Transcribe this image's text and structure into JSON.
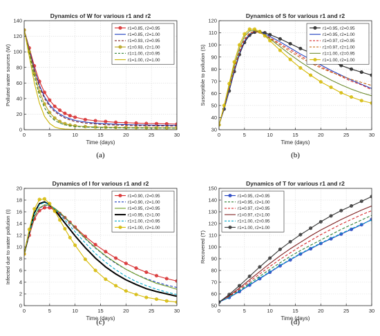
{
  "figure": {
    "captions": [
      "(a)",
      "(b)",
      "(c)",
      "(d)"
    ]
  },
  "chart_data": [
    {
      "type": "line",
      "title": "Dynamics of W for various r1 and r2",
      "xlabel": "Time (days)",
      "ylabel": "Polluted water sources (W)",
      "xlim": [
        0,
        30
      ],
      "ylim": [
        0,
        140
      ],
      "xticks": [
        0,
        5,
        10,
        15,
        20,
        25,
        30
      ],
      "yticks": [
        0,
        20,
        40,
        60,
        80,
        100,
        120,
        140
      ],
      "grid": true,
      "legend_position": "top-right",
      "x": [
        0,
        1,
        2,
        3,
        4,
        5,
        6,
        7,
        8,
        9,
        10,
        12,
        14,
        16,
        18,
        20,
        22,
        24,
        26,
        28,
        30
      ],
      "series": [
        {
          "name": "r1=0.85, r2=0.95",
          "color": "#d62728",
          "style": "marker",
          "values": [
            128,
            105,
            82,
            62,
            48,
            38,
            30,
            25,
            21,
            18,
            16,
            13,
            11.5,
            10.5,
            9.5,
            9,
            8.5,
            8,
            7.8,
            7.5,
            7.2
          ]
        },
        {
          "name": "r1=0.85, r2=1.00",
          "color": "#1f3fbf",
          "style": "solid",
          "values": [
            128,
            103,
            78,
            57,
            42,
            32,
            25,
            20,
            16.5,
            14,
            12,
            9.8,
            8.5,
            7.7,
            7,
            6.6,
            6.2,
            6,
            5.8,
            5.6,
            5.5
          ]
        },
        {
          "name": "r1=0.93, r2=0.95",
          "color": "#7f1f1f",
          "style": "dashed",
          "values": [
            128,
            102,
            76,
            55,
            40,
            30,
            23,
            18.5,
            15,
            12.5,
            10.5,
            8.5,
            7.3,
            6.5,
            6,
            5.6,
            5.3,
            5.1,
            5,
            4.9,
            4.8
          ]
        },
        {
          "name": "r1=0.93, r2=1.00",
          "color": "#b5a11a",
          "style": "marker",
          "values": [
            128,
            100,
            72,
            49,
            33,
            22,
            15,
            10.5,
            7.8,
            6,
            5,
            4,
            3.5,
            3.2,
            3,
            2.8,
            2.7,
            2.6,
            2.5,
            2.5,
            2.4
          ]
        },
        {
          "name": "r1=1.00, r2=0.95",
          "color": "#2e7d32",
          "style": "dashed",
          "values": [
            128,
            98,
            68,
            44,
            28,
            18,
            12,
            8.5,
            6.3,
            5,
            4.2,
            3.4,
            3,
            2.7,
            2.5,
            2.4,
            2.3,
            2.2,
            2.1,
            2.1,
            2
          ]
        },
        {
          "name": "r1=1.00, r2=1.00",
          "color": "#c9b300",
          "style": "solid",
          "values": [
            128,
            94,
            60,
            34,
            17,
            8,
            3.5,
            1.5,
            0.8,
            0.5,
            0.3,
            0.2,
            0.2,
            0.1,
            0.1,
            0.1,
            0.1,
            0.1,
            0.1,
            0.1,
            0.1
          ]
        }
      ]
    },
    {
      "type": "line",
      "title": "Dynamics of S for various r1 and r2",
      "xlabel": "Time (days)",
      "ylabel": "Susceptible to pollution (S)",
      "xlim": [
        0,
        30
      ],
      "ylim": [
        30,
        120
      ],
      "xticks": [
        0,
        5,
        10,
        15,
        20,
        25,
        30
      ],
      "yticks": [
        30,
        40,
        50,
        60,
        70,
        80,
        90,
        100,
        110,
        120
      ],
      "grid": true,
      "legend_position": "top-right",
      "x": [
        0,
        1,
        2,
        3,
        4,
        5,
        6,
        7,
        8,
        9,
        10,
        12,
        14,
        16,
        18,
        20,
        22,
        24,
        26,
        28,
        30
      ],
      "series": [
        {
          "name": "r1=0.95, r2=0.95",
          "color": "#222222",
          "style": "marker",
          "values": [
            34,
            47,
            62,
            78,
            92,
            102,
            108,
            110.5,
            110.8,
            110,
            108.5,
            105,
            101,
            97,
            93.5,
            90,
            86.5,
            83,
            80,
            77.5,
            75
          ]
        },
        {
          "name": "r1=0.95, r2=1.00",
          "color": "#1f3fbf",
          "style": "solid",
          "values": [
            34,
            47.5,
            63,
            79,
            93,
            103,
            109,
            111,
            110.5,
            109,
            107,
            102.5,
            97.5,
            92.5,
            88,
            83.5,
            79,
            75,
            71,
            67.5,
            64
          ]
        },
        {
          "name": "r1=0.97, r2=0.95",
          "color": "#d62728",
          "style": "dashed",
          "values": [
            34,
            48,
            64,
            80,
            94,
            104,
            109.5,
            111,
            110.3,
            108.5,
            106,
            101,
            96,
            91,
            86,
            82,
            78,
            74,
            70,
            67,
            63
          ]
        },
        {
          "name": "r1=0.97, r2=1.00",
          "color": "#c56a17",
          "style": "dashed",
          "values": [
            34,
            48.5,
            65,
            81,
            95,
            105,
            110,
            111.2,
            110,
            108,
            105.5,
            100,
            94.5,
            89.5,
            85,
            81,
            77.5,
            74.5,
            71.5,
            69,
            66.5
          ]
        },
        {
          "name": "r1=1.00, r2=0.95",
          "color": "#6d8b2f",
          "style": "solid",
          "values": [
            34,
            49,
            66,
            83,
            97,
            107,
            111.5,
            112,
            110.5,
            108,
            105,
            98.5,
            92,
            86,
            80.5,
            75.5,
            71,
            67,
            63.5,
            60.5,
            58
          ]
        },
        {
          "name": "r1=1.00, r2=1.00",
          "color": "#d4b800",
          "style": "marker",
          "values": [
            34,
            50,
            68,
            86,
            100,
            109,
            113,
            113,
            111,
            107.5,
            103.5,
            95.5,
            88,
            81,
            75,
            69.5,
            65,
            60.5,
            57,
            54,
            52
          ]
        }
      ]
    },
    {
      "type": "line",
      "title": "Dynamics of I for various r1 and r2",
      "xlabel": "Time (days)",
      "ylabel": "Infected due to water pollution (I)",
      "xlim": [
        0,
        30
      ],
      "ylim": [
        0,
        20
      ],
      "xticks": [
        0,
        5,
        10,
        15,
        20,
        25,
        30
      ],
      "yticks": [
        0,
        2,
        4,
        6,
        8,
        10,
        12,
        14,
        16,
        18,
        20
      ],
      "grid": true,
      "legend_position": "top-right",
      "x": [
        0,
        1,
        2,
        3,
        4,
        5,
        6,
        7,
        8,
        9,
        10,
        12,
        14,
        16,
        18,
        20,
        22,
        24,
        26,
        28,
        30
      ],
      "series": [
        {
          "name": "r1=0.90, r2=0.95",
          "color": "#d62728",
          "style": "marker",
          "values": [
            8.8,
            12,
            14.8,
            16.2,
            16.7,
            16.7,
            16.3,
            15.7,
            15,
            14.2,
            13.4,
            11.8,
            10.4,
            9.2,
            8.1,
            7.2,
            6.4,
            5.7,
            5.1,
            4.6,
            4.2
          ]
        },
        {
          "name": "r1=0.90, r2=1.00",
          "color": "#1f3fbf",
          "style": "dashed",
          "values": [
            8.8,
            12.2,
            15.1,
            16.6,
            17.1,
            17,
            16.5,
            15.8,
            15,
            14.1,
            13.2,
            11.4,
            9.8,
            8.4,
            7.2,
            6.2,
            5.3,
            4.6,
            4,
            3.5,
            3.1
          ]
        },
        {
          "name": "r1=0.95, r2=0.95",
          "color": "#6a9a1f",
          "style": "solid",
          "values": [
            8.8,
            12.3,
            15.2,
            16.7,
            17.2,
            17.1,
            16.6,
            15.9,
            15.1,
            14.2,
            13.3,
            11.5,
            9.9,
            8.5,
            7.3,
            6.2,
            5.3,
            4.5,
            3.8,
            3.3,
            2.8
          ]
        },
        {
          "name": "r1=0.95, r2=1.00",
          "color": "#000000",
          "style": "thick",
          "values": [
            8.8,
            12.6,
            15.8,
            17.4,
            17.7,
            17.2,
            16.3,
            15.2,
            14.1,
            13,
            11.9,
            9.9,
            8.1,
            6.6,
            5.4,
            4.4,
            3.6,
            2.9,
            2.4,
            2,
            1.6
          ]
        },
        {
          "name": "r1=1.00, r2=0.95",
          "color": "#00a8c8",
          "style": "dashed",
          "values": [
            8.8,
            12.5,
            15.6,
            17.2,
            17.6,
            17.2,
            16.5,
            15.6,
            14.6,
            13.6,
            12.6,
            10.7,
            8.9,
            7.4,
            6.1,
            5,
            4.1,
            3.4,
            2.8,
            2.3,
            1.9
          ]
        },
        {
          "name": "r1=1.00, r2=1.00",
          "color": "#d4b800",
          "style": "marker",
          "values": [
            8.8,
            13,
            16.5,
            18.1,
            18.2,
            17.4,
            16.1,
            14.6,
            13.1,
            11.6,
            10.3,
            7.9,
            6,
            4.5,
            3.4,
            2.5,
            1.9,
            1.4,
            1.1,
            0.8,
            0.6
          ]
        }
      ]
    },
    {
      "type": "line",
      "title": "Dynamics of T for various r1 and r2",
      "xlabel": "Time (days)",
      "ylabel": "Recovered (T)",
      "xlim": [
        0,
        30
      ],
      "ylim": [
        50,
        150
      ],
      "xticks": [
        0,
        5,
        10,
        15,
        20,
        25,
        30
      ],
      "yticks": [
        50,
        60,
        70,
        80,
        90,
        100,
        110,
        120,
        130,
        140,
        150
      ],
      "grid": true,
      "legend_position": "top-left",
      "x": [
        0,
        2,
        4,
        6,
        8,
        10,
        12,
        14,
        16,
        18,
        20,
        22,
        24,
        26,
        28,
        30
      ],
      "series": [
        {
          "name": "r1=0.95, r2=0.95",
          "color": "#1f3fbf",
          "style": "marker",
          "values": [
            53,
            57,
            62,
            67.5,
            73,
            78.5,
            84,
            89,
            94,
            98.5,
            103,
            107,
            111,
            115,
            119,
            123.5
          ]
        },
        {
          "name": "r1=0.95, r2=1.00",
          "color": "#2e7d32",
          "style": "dashed",
          "values": [
            53,
            57.5,
            63,
            69,
            75,
            81,
            86.5,
            92,
            97,
            101.5,
            106,
            110.5,
            115,
            119,
            123,
            127
          ]
        },
        {
          "name": "r1=0.97, r2=0.95",
          "color": "#d62728",
          "style": "dashed",
          "values": [
            53,
            58,
            64,
            70.5,
            77,
            83.5,
            89.5,
            95,
            100.5,
            105.5,
            110.5,
            115,
            119.5,
            123.5,
            127.5,
            131
          ]
        },
        {
          "name": "r1=0.97, r2=1.00",
          "color": "#7f1f1f",
          "style": "solid",
          "values": [
            53,
            58.5,
            65,
            72,
            79,
            86,
            92.5,
            98.5,
            104,
            109.5,
            114.5,
            119,
            123.5,
            127.5,
            131.5,
            135
          ]
        },
        {
          "name": "r1=1.00, r2=0.95",
          "color": "#00a8c8",
          "style": "dashed",
          "values": [
            53,
            57,
            62.5,
            68,
            73.5,
            79,
            84.5,
            89.5,
            94.5,
            99,
            103.5,
            107.5,
            111.5,
            115.5,
            119.5,
            123
          ]
        },
        {
          "name": "r1=1.00, r2=1.00",
          "color": "#333333",
          "style": "marker",
          "values": [
            53,
            59.5,
            67,
            75,
            83,
            90.5,
            98,
            104.5,
            110.5,
            116,
            121.5,
            126.5,
            131,
            135,
            139,
            143
          ]
        }
      ]
    }
  ]
}
